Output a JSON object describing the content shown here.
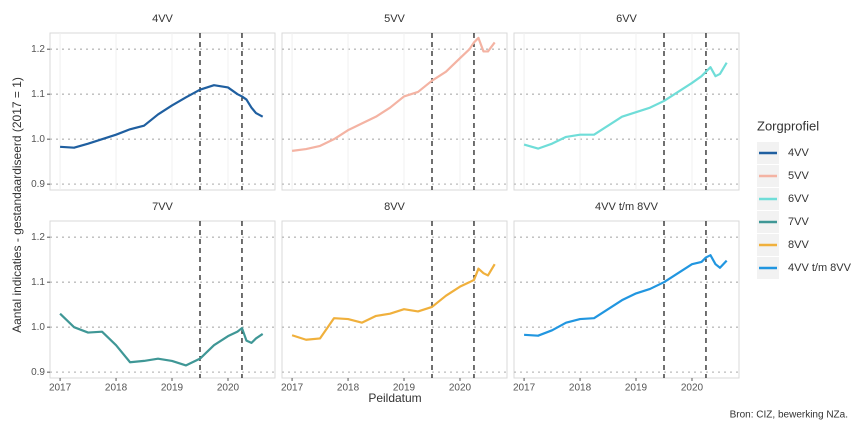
{
  "figure": {
    "xlabel": "Peildatum",
    "ylabel": "Aantal indicaties - gestandaardiseerd (2017 = 1)",
    "legend_title": "Zorgprofiel",
    "caption": "Bron: CIZ, bewerking NZa."
  },
  "chart_data": [
    {
      "type": "line",
      "title": "4VV",
      "x": [
        2017,
        2017.25,
        2017.5,
        2017.75,
        2018,
        2018.25,
        2018.5,
        2018.75,
        2019,
        2019.25,
        2019.5,
        2019.75,
        2020,
        2020.17,
        2020.25,
        2020.33,
        2020.42,
        2020.5,
        2020.62
      ],
      "series": [
        {
          "name": "4VV",
          "color": "#1f5fa0",
          "values": [
            0.983,
            0.981,
            0.99,
            1.0,
            1.01,
            1.022,
            1.03,
            1.055,
            1.075,
            1.093,
            1.11,
            1.12,
            1.115,
            1.1,
            1.095,
            1.088,
            1.07,
            1.058,
            1.05
          ]
        }
      ],
      "xlim": [
        2016.82,
        2020.84
      ],
      "ylim": [
        0.887,
        1.236
      ],
      "xticks": [
        2017,
        2018,
        2019,
        2020
      ],
      "yticks": [
        0.9,
        {
          "value": 1.0,
          "label": "1.0"
        },
        1.1,
        1.2
      ],
      "vlines": [
        2019.5,
        2020.25
      ],
      "grid": true
    },
    {
      "type": "line",
      "title": "5VV",
      "x": [
        2017,
        2017.25,
        2017.5,
        2017.75,
        2018,
        2018.25,
        2018.5,
        2018.75,
        2019,
        2019.25,
        2019.5,
        2019.75,
        2020,
        2020.17,
        2020.25,
        2020.33,
        2020.42,
        2020.5,
        2020.62
      ],
      "series": [
        {
          "name": "5VV",
          "color": "#f4b3a3",
          "values": [
            0.974,
            0.978,
            0.985,
            1.0,
            1.02,
            1.035,
            1.05,
            1.07,
            1.095,
            1.105,
            1.13,
            1.15,
            1.18,
            1.2,
            1.215,
            1.225,
            1.195,
            1.195,
            1.215
          ]
        }
      ],
      "xlim": [
        2016.82,
        2020.84
      ],
      "ylim": [
        0.887,
        1.236
      ],
      "xticks": [
        2017,
        2018,
        2019,
        2020
      ],
      "yticks": [
        0.9,
        {
          "value": 1.0,
          "label": "1.0"
        },
        1.1,
        1.2
      ],
      "vlines": [
        2019.5,
        2020.25
      ],
      "grid": true
    },
    {
      "type": "line",
      "title": "6VV",
      "x": [
        2017,
        2017.25,
        2017.5,
        2017.75,
        2018,
        2018.25,
        2018.5,
        2018.75,
        2019,
        2019.25,
        2019.5,
        2019.75,
        2020,
        2020.17,
        2020.25,
        2020.33,
        2020.42,
        2020.5,
        2020.62
      ],
      "series": [
        {
          "name": "6VV",
          "color": "#6fddd8",
          "values": [
            0.988,
            0.979,
            0.99,
            1.005,
            1.01,
            1.01,
            1.03,
            1.05,
            1.06,
            1.07,
            1.085,
            1.105,
            1.125,
            1.14,
            1.15,
            1.16,
            1.14,
            1.145,
            1.17
          ]
        }
      ],
      "xlim": [
        2016.82,
        2020.84
      ],
      "ylim": [
        0.887,
        1.236
      ],
      "xticks": [
        2017,
        2018,
        2019,
        2020
      ],
      "yticks": [
        0.9,
        {
          "value": 1.0,
          "label": "1.0"
        },
        1.1,
        1.2
      ],
      "vlines": [
        2019.5,
        2020.25
      ],
      "grid": true
    },
    {
      "type": "line",
      "title": "7VV",
      "x": [
        2017,
        2017.25,
        2017.5,
        2017.75,
        2018,
        2018.25,
        2018.5,
        2018.75,
        2019,
        2019.25,
        2019.5,
        2019.75,
        2020,
        2020.17,
        2020.25,
        2020.33,
        2020.42,
        2020.5,
        2020.62
      ],
      "series": [
        {
          "name": "7VV",
          "color": "#3f9796",
          "values": [
            1.03,
            1.0,
            0.988,
            0.99,
            0.96,
            0.922,
            0.925,
            0.93,
            0.925,
            0.915,
            0.93,
            0.96,
            0.98,
            0.99,
            0.998,
            0.97,
            0.965,
            0.975,
            0.985
          ]
        }
      ],
      "xlim": [
        2016.82,
        2020.84
      ],
      "ylim": [
        0.887,
        1.236
      ],
      "xticks": [
        2017,
        2018,
        2019,
        2020
      ],
      "yticks": [
        0.9,
        {
          "value": 1.0,
          "label": "1.0"
        },
        1.1,
        1.2
      ],
      "vlines": [
        2019.5,
        2020.25
      ],
      "grid": true
    },
    {
      "type": "line",
      "title": "8VV",
      "x": [
        2017,
        2017.25,
        2017.5,
        2017.75,
        2018,
        2018.25,
        2018.5,
        2018.75,
        2019,
        2019.25,
        2019.5,
        2019.75,
        2020,
        2020.17,
        2020.25,
        2020.33,
        2020.42,
        2020.5,
        2020.62
      ],
      "series": [
        {
          "name": "8VV",
          "color": "#f0b03c",
          "values": [
            0.982,
            0.972,
            0.975,
            1.02,
            1.018,
            1.01,
            1.025,
            1.03,
            1.04,
            1.035,
            1.045,
            1.07,
            1.09,
            1.1,
            1.105,
            1.13,
            1.12,
            1.115,
            1.14
          ]
        }
      ],
      "xlim": [
        2016.82,
        2020.84
      ],
      "ylim": [
        0.887,
        1.236
      ],
      "xticks": [
        2017,
        2018,
        2019,
        2020
      ],
      "yticks": [
        0.9,
        {
          "value": 1.0,
          "label": "1.0"
        },
        1.1,
        1.2
      ],
      "vlines": [
        2019.5,
        2020.25
      ],
      "grid": true
    },
    {
      "type": "line",
      "title": "4VV t/m 8VV",
      "x": [
        2017,
        2017.25,
        2017.5,
        2017.75,
        2018,
        2018.25,
        2018.5,
        2018.75,
        2019,
        2019.25,
        2019.5,
        2019.75,
        2020,
        2020.17,
        2020.25,
        2020.33,
        2020.42,
        2020.5,
        2020.62
      ],
      "series": [
        {
          "name": "4VV t/m 8VV",
          "color": "#2196e0",
          "values": [
            0.983,
            0.981,
            0.993,
            1.01,
            1.018,
            1.02,
            1.04,
            1.06,
            1.075,
            1.085,
            1.1,
            1.12,
            1.14,
            1.145,
            1.155,
            1.16,
            1.14,
            1.132,
            1.148
          ]
        }
      ],
      "xlim": [
        2016.82,
        2020.84
      ],
      "ylim": [
        0.887,
        1.236
      ],
      "xticks": [
        2017,
        2018,
        2019,
        2020
      ],
      "yticks": [
        0.9,
        {
          "value": 1.0,
          "label": "1.0"
        },
        1.1,
        1.2
      ],
      "vlines": [
        2019.5,
        2020.25
      ],
      "grid": true
    }
  ]
}
